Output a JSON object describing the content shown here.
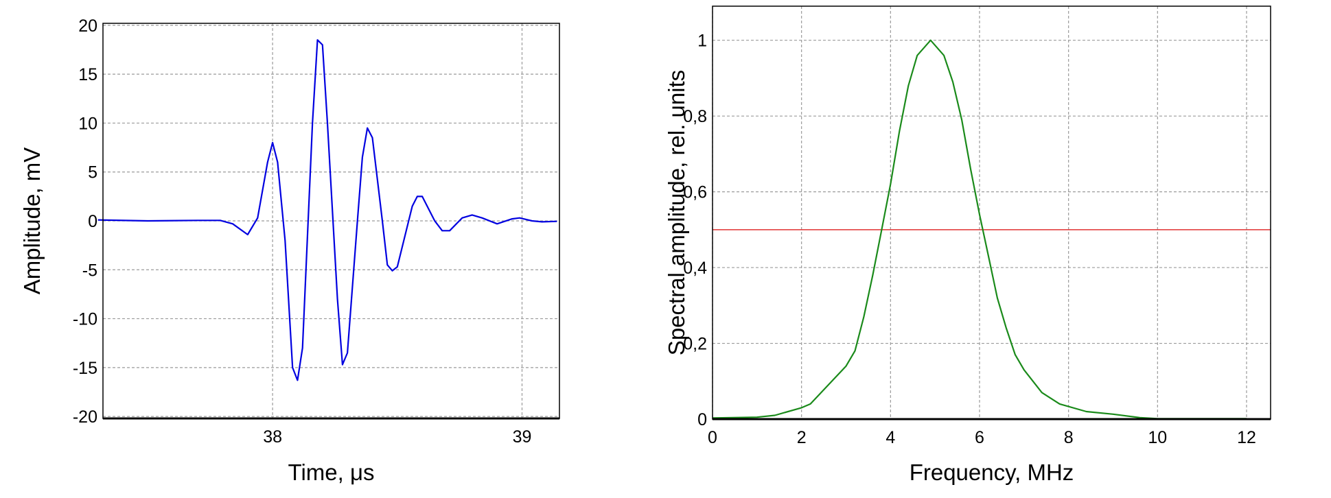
{
  "chart_data": [
    {
      "type": "line",
      "xlabel": "Time, μs",
      "ylabel": "Amplitude, mV",
      "xlim": [
        37.32,
        39.15
      ],
      "ylim": [
        -20.2,
        20.2
      ],
      "xticks": [
        "38",
        "39"
      ],
      "yticks": [
        "20",
        "15",
        "10",
        "5",
        "0",
        "-5",
        "-10",
        "-15",
        "-20"
      ],
      "grid": true,
      "colors": {
        "line": "#0000e0"
      },
      "x": [
        37.3,
        37.5,
        37.7,
        37.79,
        37.84,
        37.9,
        37.94,
        37.98,
        38.0,
        38.02,
        38.05,
        38.08,
        38.1,
        38.12,
        38.16,
        38.18,
        38.2,
        38.22,
        38.26,
        38.28,
        38.3,
        38.34,
        38.36,
        38.38,
        38.4,
        38.44,
        38.46,
        38.48,
        38.5,
        38.56,
        38.58,
        38.6,
        38.65,
        38.68,
        38.71,
        38.76,
        38.8,
        38.84,
        38.9,
        38.96,
        38.99,
        39.04,
        39.08,
        39.14
      ],
      "y": [
        0.1,
        0.0,
        0.05,
        0.05,
        -0.3,
        -1.4,
        0.3,
        6.0,
        8.0,
        6.0,
        -2.0,
        -15.0,
        -16.3,
        -13.0,
        10.0,
        18.5,
        18.0,
        10.0,
        -8.0,
        -14.7,
        -13.5,
        0.0,
        6.5,
        9.5,
        8.5,
        0.0,
        -4.5,
        -5.1,
        -4.7,
        1.5,
        2.5,
        2.5,
        0.0,
        -1.0,
        -1.0,
        0.3,
        0.6,
        0.3,
        -0.3,
        0.2,
        0.3,
        0.0,
        -0.1,
        -0.05
      ]
    },
    {
      "type": "line",
      "xlabel": "Frequency, MHz",
      "ylabel": "Spectral amplitude, rel. units",
      "xlim": [
        0,
        12.54
      ],
      "ylim": [
        0,
        1.09
      ],
      "xticks": [
        "0",
        "2",
        "4",
        "6",
        "8",
        "10",
        "12"
      ],
      "yticks": [
        "0",
        "0,2",
        "0,4",
        "0,6",
        "0,8",
        "1"
      ],
      "grid": true,
      "colors": {
        "line": "#1a8a1a",
        "reference": "#e03030"
      },
      "reference_line": 0.5,
      "x": [
        0,
        1,
        1.4,
        2,
        2.2,
        2.6,
        3,
        3.2,
        3.4,
        3.6,
        3.8,
        4,
        4.2,
        4.4,
        4.6,
        4.9,
        5.2,
        5.4,
        5.6,
        5.8,
        6.0,
        6.2,
        6.4,
        6.6,
        6.8,
        7.0,
        7.4,
        7.8,
        8.4,
        9,
        9.6,
        10,
        11,
        12
      ],
      "y": [
        0.003,
        0.005,
        0.01,
        0.03,
        0.04,
        0.09,
        0.14,
        0.18,
        0.27,
        0.38,
        0.5,
        0.62,
        0.76,
        0.88,
        0.96,
        1.0,
        0.96,
        0.89,
        0.79,
        0.66,
        0.54,
        0.43,
        0.32,
        0.24,
        0.17,
        0.13,
        0.07,
        0.04,
        0.02,
        0.013,
        0.004,
        0.001,
        0.001,
        0.001
      ]
    }
  ]
}
